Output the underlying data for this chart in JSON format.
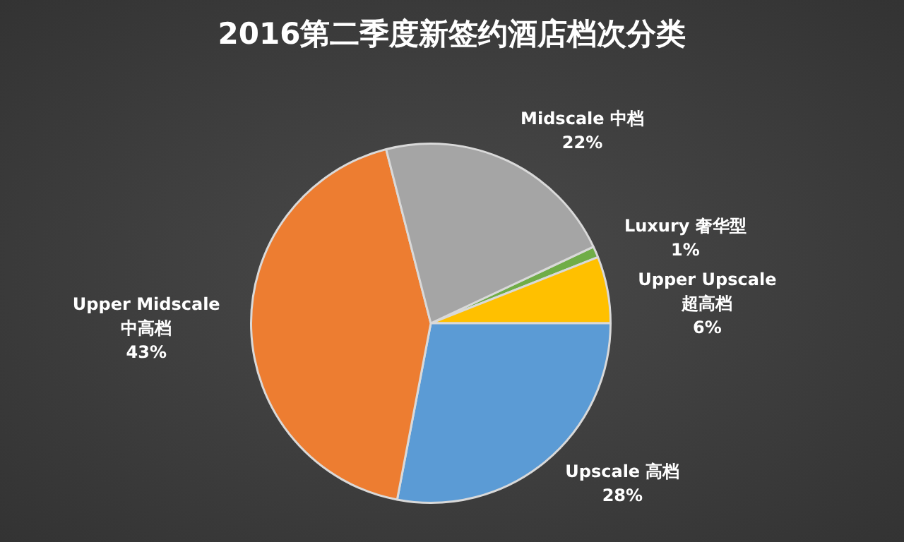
{
  "chart_data": {
    "type": "pie",
    "title": "2016第二季度新签约酒店档次分类",
    "categories": [
      "Luxury 奢华型",
      "Upper Upscale\n超高档",
      "Upscale 高档",
      "Upper Midscale\n中高档",
      "Midscale 中档"
    ],
    "values": [
      1,
      6,
      28,
      43,
      22
    ],
    "value_labels": [
      "1%",
      "6%",
      "28%",
      "43%",
      "22%"
    ],
    "colors": [
      "#70ad47",
      "#ffc000",
      "#5b9bd5",
      "#ed7d31",
      "#a5a5a5"
    ]
  }
}
